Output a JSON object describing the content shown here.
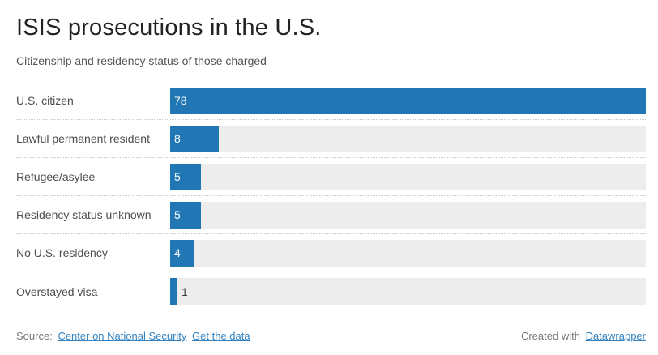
{
  "chart_data": {
    "type": "bar",
    "orientation": "horizontal",
    "title": "ISIS prosecutions in the U.S.",
    "subtitle": "Citizenship and residency status of those charged",
    "categories": [
      "U.S. citizen",
      "Lawful permanent resident",
      "Refugee/asylee",
      "Residency status unknown",
      "No U.S. residency",
      "Overstayed visa"
    ],
    "values": [
      78,
      8,
      5,
      5,
      4,
      1
    ],
    "xlim": [
      0,
      78
    ],
    "value_labels_shown": true,
    "grid": false,
    "legend": "none"
  },
  "footer": {
    "source_label": "Source:",
    "source_link_label": "Center on National Security",
    "get_data_link_label": "Get the data",
    "created_with_label": "Created with",
    "creator_link_label": "Datawrapper"
  },
  "colors": {
    "bar": "#2077B4",
    "bar_track": "#EDEDED",
    "value_inside": "#FFFFFF",
    "value_outside": "#3D3D3D",
    "title": "#222222",
    "subtitle": "#555555",
    "category_label": "#4D4D4D",
    "separator": "#CCCCCC",
    "footer_text": "#777777",
    "link": "#3383C2",
    "background": "#FFFFFF"
  }
}
